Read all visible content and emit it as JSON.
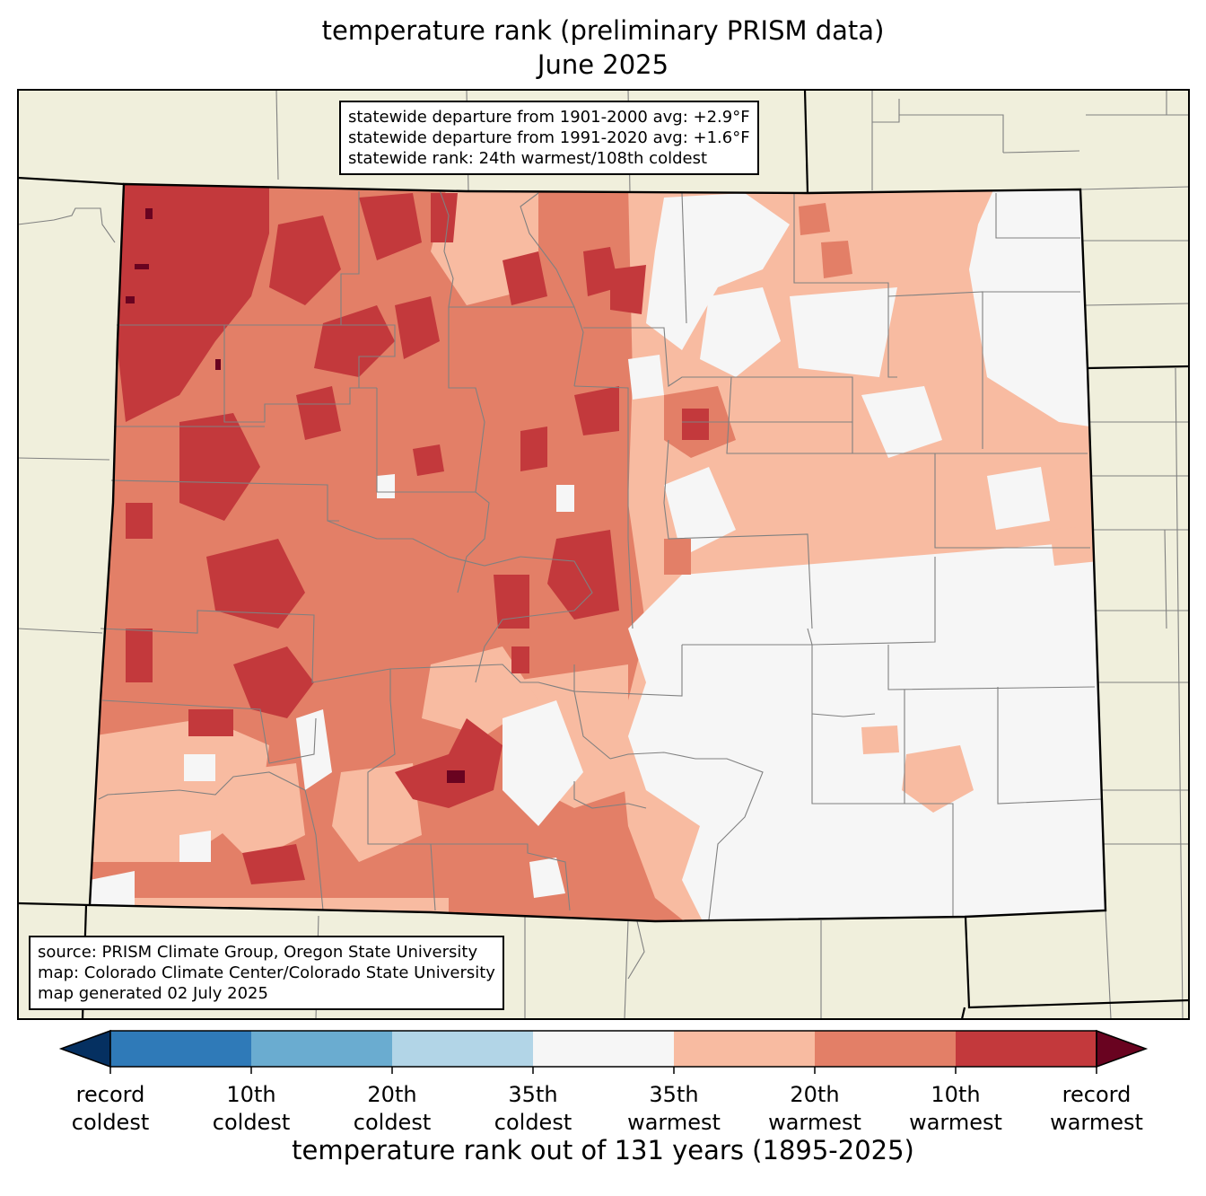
{
  "title": {
    "line1": "temperature rank (preliminary PRISM data)",
    "line2": "June 2025"
  },
  "stats_box": {
    "line1": "statewide departure from 1901-2000 avg: +2.9°F",
    "line2": "statewide departure from 1991-2020 avg: +1.6°F",
    "line3": "statewide rank: 24th warmest/108th coldest"
  },
  "source_box": {
    "line1": "source: PRISM Climate Group, Oregon State University",
    "line2": "map: Colorado Climate Center/Colorado State University",
    "line3": "map generated 02 July 2025"
  },
  "colors": {
    "land": "#f0efdc",
    "record_coldest": "#053061",
    "coldest_10": "#2f7ab8",
    "coldest_20": "#6aacd0",
    "coldest_35": "#b2d5e7",
    "near_normal": "#f6f6f6",
    "warmest_35": "#f8bba1",
    "warmest_20": "#e37f67",
    "warmest_10": "#c3393c",
    "record_warmest": "#690320",
    "county_line": "#808080",
    "state_line": "#000000"
  },
  "colorbar": {
    "title": "temperature rank out of 131 years (1895-2025)",
    "ticks": [
      {
        "top": "record",
        "bottom": "coldest"
      },
      {
        "top": "10th",
        "bottom": "coldest"
      },
      {
        "top": "20th",
        "bottom": "coldest"
      },
      {
        "top": "35th",
        "bottom": "coldest"
      },
      {
        "top": "35th",
        "bottom": "warmest"
      },
      {
        "top": "20th",
        "bottom": "warmest"
      },
      {
        "top": "10th",
        "bottom": "warmest"
      },
      {
        "top": "record",
        "bottom": "warmest"
      }
    ]
  }
}
